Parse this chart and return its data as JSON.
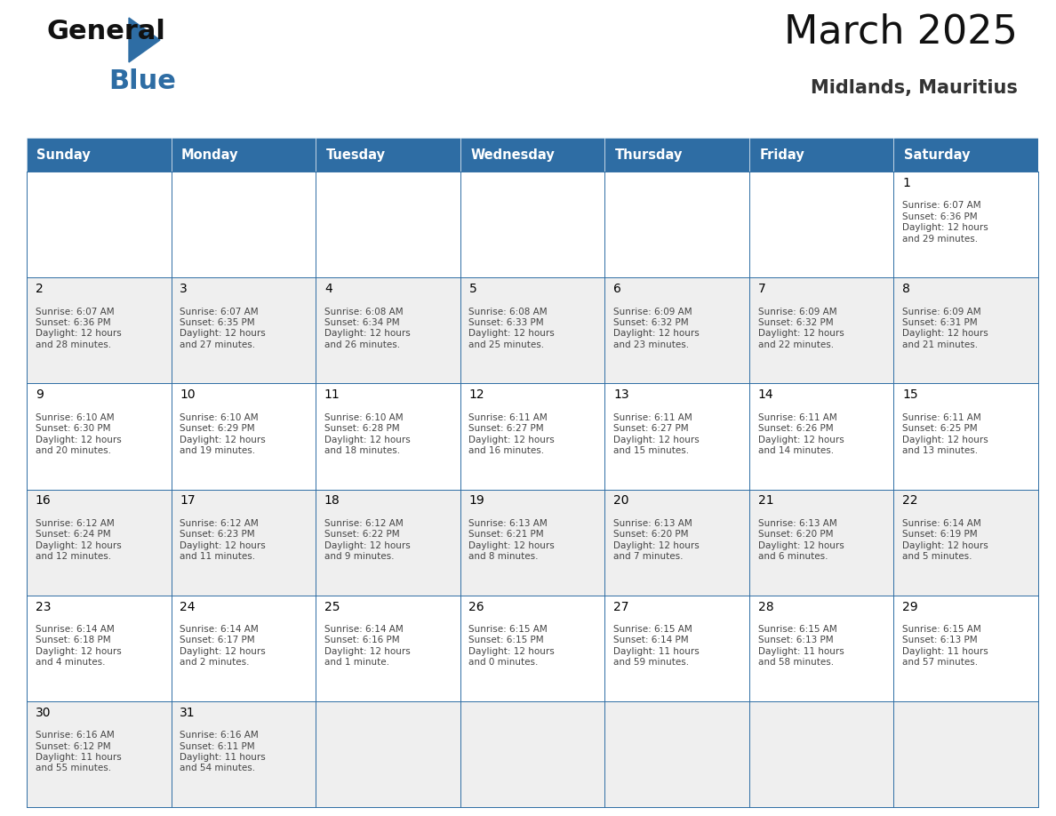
{
  "title": "March 2025",
  "subtitle": "Midlands, Mauritius",
  "days_of_week": [
    "Sunday",
    "Monday",
    "Tuesday",
    "Wednesday",
    "Thursday",
    "Friday",
    "Saturday"
  ],
  "header_bg": "#2E6DA4",
  "header_text": "#FFFFFF",
  "cell_bg_light": "#EFEFEF",
  "cell_bg_white": "#FFFFFF",
  "border_color": "#2E6DA4",
  "day_number_color": "#000000",
  "cell_text_color": "#444444",
  "title_color": "#111111",
  "subtitle_color": "#333333",
  "logo_black": "#111111",
  "logo_blue": "#2E6DA4",
  "calendar": [
    [
      null,
      null,
      null,
      null,
      null,
      null,
      {
        "day": 1,
        "sunrise": "6:07 AM",
        "sunset": "6:36 PM",
        "daylight": "12 hours\nand 29 minutes."
      }
    ],
    [
      {
        "day": 2,
        "sunrise": "6:07 AM",
        "sunset": "6:36 PM",
        "daylight": "12 hours\nand 28 minutes."
      },
      {
        "day": 3,
        "sunrise": "6:07 AM",
        "sunset": "6:35 PM",
        "daylight": "12 hours\nand 27 minutes."
      },
      {
        "day": 4,
        "sunrise": "6:08 AM",
        "sunset": "6:34 PM",
        "daylight": "12 hours\nand 26 minutes."
      },
      {
        "day": 5,
        "sunrise": "6:08 AM",
        "sunset": "6:33 PM",
        "daylight": "12 hours\nand 25 minutes."
      },
      {
        "day": 6,
        "sunrise": "6:09 AM",
        "sunset": "6:32 PM",
        "daylight": "12 hours\nand 23 minutes."
      },
      {
        "day": 7,
        "sunrise": "6:09 AM",
        "sunset": "6:32 PM",
        "daylight": "12 hours\nand 22 minutes."
      },
      {
        "day": 8,
        "sunrise": "6:09 AM",
        "sunset": "6:31 PM",
        "daylight": "12 hours\nand 21 minutes."
      }
    ],
    [
      {
        "day": 9,
        "sunrise": "6:10 AM",
        "sunset": "6:30 PM",
        "daylight": "12 hours\nand 20 minutes."
      },
      {
        "day": 10,
        "sunrise": "6:10 AM",
        "sunset": "6:29 PM",
        "daylight": "12 hours\nand 19 minutes."
      },
      {
        "day": 11,
        "sunrise": "6:10 AM",
        "sunset": "6:28 PM",
        "daylight": "12 hours\nand 18 minutes."
      },
      {
        "day": 12,
        "sunrise": "6:11 AM",
        "sunset": "6:27 PM",
        "daylight": "12 hours\nand 16 minutes."
      },
      {
        "day": 13,
        "sunrise": "6:11 AM",
        "sunset": "6:27 PM",
        "daylight": "12 hours\nand 15 minutes."
      },
      {
        "day": 14,
        "sunrise": "6:11 AM",
        "sunset": "6:26 PM",
        "daylight": "12 hours\nand 14 minutes."
      },
      {
        "day": 15,
        "sunrise": "6:11 AM",
        "sunset": "6:25 PM",
        "daylight": "12 hours\nand 13 minutes."
      }
    ],
    [
      {
        "day": 16,
        "sunrise": "6:12 AM",
        "sunset": "6:24 PM",
        "daylight": "12 hours\nand 12 minutes."
      },
      {
        "day": 17,
        "sunrise": "6:12 AM",
        "sunset": "6:23 PM",
        "daylight": "12 hours\nand 11 minutes."
      },
      {
        "day": 18,
        "sunrise": "6:12 AM",
        "sunset": "6:22 PM",
        "daylight": "12 hours\nand 9 minutes."
      },
      {
        "day": 19,
        "sunrise": "6:13 AM",
        "sunset": "6:21 PM",
        "daylight": "12 hours\nand 8 minutes."
      },
      {
        "day": 20,
        "sunrise": "6:13 AM",
        "sunset": "6:20 PM",
        "daylight": "12 hours\nand 7 minutes."
      },
      {
        "day": 21,
        "sunrise": "6:13 AM",
        "sunset": "6:20 PM",
        "daylight": "12 hours\nand 6 minutes."
      },
      {
        "day": 22,
        "sunrise": "6:14 AM",
        "sunset": "6:19 PM",
        "daylight": "12 hours\nand 5 minutes."
      }
    ],
    [
      {
        "day": 23,
        "sunrise": "6:14 AM",
        "sunset": "6:18 PM",
        "daylight": "12 hours\nand 4 minutes."
      },
      {
        "day": 24,
        "sunrise": "6:14 AM",
        "sunset": "6:17 PM",
        "daylight": "12 hours\nand 2 minutes."
      },
      {
        "day": 25,
        "sunrise": "6:14 AM",
        "sunset": "6:16 PM",
        "daylight": "12 hours\nand 1 minute."
      },
      {
        "day": 26,
        "sunrise": "6:15 AM",
        "sunset": "6:15 PM",
        "daylight": "12 hours\nand 0 minutes."
      },
      {
        "day": 27,
        "sunrise": "6:15 AM",
        "sunset": "6:14 PM",
        "daylight": "11 hours\nand 59 minutes."
      },
      {
        "day": 28,
        "sunrise": "6:15 AM",
        "sunset": "6:13 PM",
        "daylight": "11 hours\nand 58 minutes."
      },
      {
        "day": 29,
        "sunrise": "6:15 AM",
        "sunset": "6:13 PM",
        "daylight": "11 hours\nand 57 minutes."
      }
    ],
    [
      {
        "day": 30,
        "sunrise": "6:16 AM",
        "sunset": "6:12 PM",
        "daylight": "11 hours\nand 55 minutes."
      },
      {
        "day": 31,
        "sunrise": "6:16 AM",
        "sunset": "6:11 PM",
        "daylight": "11 hours\nand 54 minutes."
      },
      null,
      null,
      null,
      null,
      null
    ]
  ]
}
